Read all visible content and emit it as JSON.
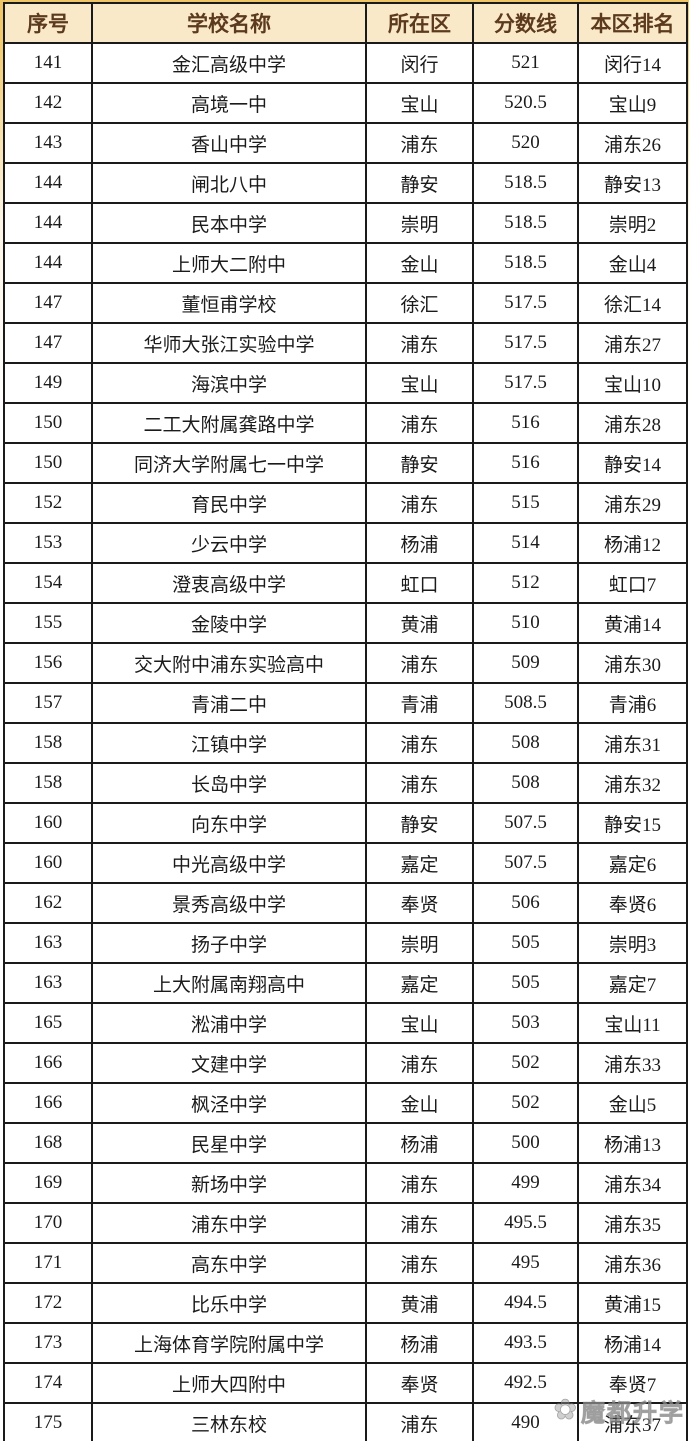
{
  "table": {
    "headers": [
      "序号",
      "学校名称",
      "所在区",
      "分数线",
      "本区排名"
    ],
    "rows": [
      [
        "141",
        "金汇高级中学",
        "闵行",
        "521",
        "闵行14"
      ],
      [
        "142",
        "高境一中",
        "宝山",
        "520.5",
        "宝山9"
      ],
      [
        "143",
        "香山中学",
        "浦东",
        "520",
        "浦东26"
      ],
      [
        "144",
        "闸北八中",
        "静安",
        "518.5",
        "静安13"
      ],
      [
        "144",
        "民本中学",
        "崇明",
        "518.5",
        "崇明2"
      ],
      [
        "144",
        "上师大二附中",
        "金山",
        "518.5",
        "金山4"
      ],
      [
        "147",
        "董恒甫学校",
        "徐汇",
        "517.5",
        "徐汇14"
      ],
      [
        "147",
        "华师大张江实验中学",
        "浦东",
        "517.5",
        "浦东27"
      ],
      [
        "149",
        "海滨中学",
        "宝山",
        "517.5",
        "宝山10"
      ],
      [
        "150",
        "二工大附属龚路中学",
        "浦东",
        "516",
        "浦东28"
      ],
      [
        "150",
        "同济大学附属七一中学",
        "静安",
        "516",
        "静安14"
      ],
      [
        "152",
        "育民中学",
        "浦东",
        "515",
        "浦东29"
      ],
      [
        "153",
        "少云中学",
        "杨浦",
        "514",
        "杨浦12"
      ],
      [
        "154",
        "澄衷高级中学",
        "虹口",
        "512",
        "虹口7"
      ],
      [
        "155",
        "金陵中学",
        "黄浦",
        "510",
        "黄浦14"
      ],
      [
        "156",
        "交大附中浦东实验高中",
        "浦东",
        "509",
        "浦东30"
      ],
      [
        "157",
        "青浦二中",
        "青浦",
        "508.5",
        "青浦6"
      ],
      [
        "158",
        "江镇中学",
        "浦东",
        "508",
        "浦东31"
      ],
      [
        "158",
        "长岛中学",
        "浦东",
        "508",
        "浦东32"
      ],
      [
        "160",
        "向东中学",
        "静安",
        "507.5",
        "静安15"
      ],
      [
        "160",
        "中光高级中学",
        "嘉定",
        "507.5",
        "嘉定6"
      ],
      [
        "162",
        "景秀高级中学",
        "奉贤",
        "506",
        "奉贤6"
      ],
      [
        "163",
        "扬子中学",
        "崇明",
        "505",
        "崇明3"
      ],
      [
        "163",
        "上大附属南翔高中",
        "嘉定",
        "505",
        "嘉定7"
      ],
      [
        "165",
        "淞浦中学",
        "宝山",
        "503",
        "宝山11"
      ],
      [
        "166",
        "文建中学",
        "浦东",
        "502",
        "浦东33"
      ],
      [
        "166",
        "枫泾中学",
        "金山",
        "502",
        "金山5"
      ],
      [
        "168",
        "民星中学",
        "杨浦",
        "500",
        "杨浦13"
      ],
      [
        "169",
        "新场中学",
        "浦东",
        "499",
        "浦东34"
      ],
      [
        "170",
        "浦东中学",
        "浦东",
        "495.5",
        "浦东35"
      ],
      [
        "171",
        "高东中学",
        "浦东",
        "495",
        "浦东36"
      ],
      [
        "172",
        "比乐中学",
        "黄浦",
        "494.5",
        "黄浦15"
      ],
      [
        "173",
        "上海体育学院附属中学",
        "杨浦",
        "493.5",
        "杨浦14"
      ],
      [
        "174",
        "上师大四附中",
        "奉贤",
        "492.5",
        "奉贤7"
      ],
      [
        "175",
        "三林东校",
        "浦东",
        "490",
        "浦东37"
      ]
    ]
  },
  "watermark": {
    "logo_icon": "flower-icon",
    "logo_glyph": "✿",
    "text": "魔都升学"
  },
  "colors": {
    "header_bg": "#FAE9C8",
    "header_text": "#5C3A1E",
    "border": "#1a1a1a",
    "body_text": "#1b1b1b",
    "page_edge_gold": "#EFC566",
    "watermark_gray": "#969696"
  }
}
